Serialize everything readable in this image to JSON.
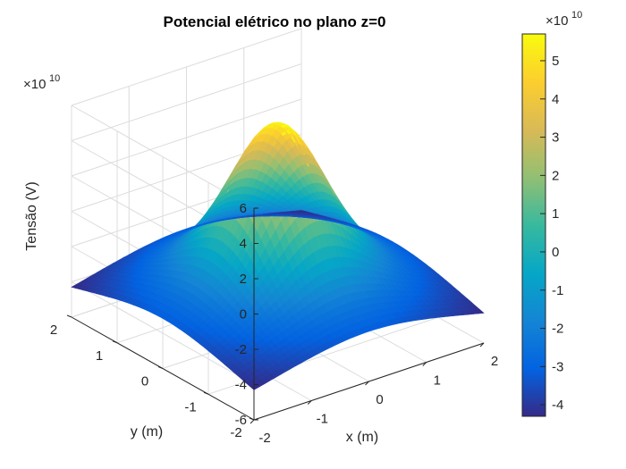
{
  "chart_data": {
    "type": "surface",
    "title": "Potencial elétrico no plano z=0",
    "xlabel": "x (m)",
    "ylabel": "y (m)",
    "zlabel": "Tensão (V)",
    "z_exponent_label": "×10",
    "z_exponent_power": "10",
    "x_ticks": [
      "-2",
      "-1",
      "0",
      "1",
      "2"
    ],
    "y_ticks": [
      "-2",
      "-1",
      "0",
      "1",
      "2"
    ],
    "z_ticks": [
      "-6",
      "-4",
      "-2",
      "0",
      "2",
      "4",
      "6"
    ],
    "xlim": [
      -2,
      2
    ],
    "ylim": [
      -2,
      2
    ],
    "zlim": [
      -60000000000.0,
      60000000000.0
    ],
    "surface": {
      "peak_at": [
        0,
        0
      ],
      "peak_value": 57000000000.0,
      "corner_value": -43000000000.0,
      "edge_mid_value": -18000000000.0
    },
    "colorbar": {
      "colormap": "parula",
      "range": [
        -43000000000.0,
        57000000000.0
      ],
      "ticks": [
        "-4",
        "-3",
        "-2",
        "-1",
        "0",
        "1",
        "2",
        "3",
        "4",
        "5"
      ],
      "exponent_label": "×10",
      "exponent_power": "10"
    },
    "grid": true
  }
}
